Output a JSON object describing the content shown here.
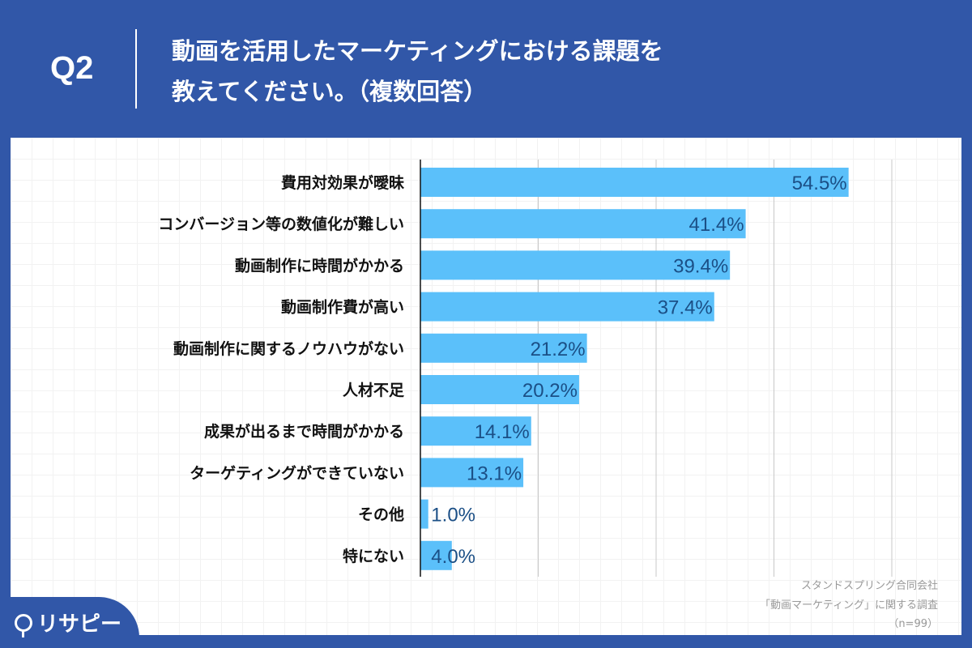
{
  "header": {
    "question_no": "Q2",
    "title_line1": "動画を活用したマーケティングにおける課題を",
    "title_line2": "教えてください。（複数回答）"
  },
  "chart_data": {
    "type": "bar",
    "orientation": "horizontal",
    "categories": [
      "費用対効果が曖昧",
      "コンバージョン等の数値化が難しい",
      "動画制作に時間がかかる",
      "動画制作費が高い",
      "動画制作に関するノウハウがない",
      "人材不足",
      "成果が出るまで時間がかかる",
      "ターゲティングができていない",
      "その他",
      "特にない"
    ],
    "values": [
      54.5,
      41.4,
      39.4,
      37.4,
      21.2,
      20.2,
      14.1,
      13.1,
      1.0,
      4.0
    ],
    "data_labels": [
      "54.5%",
      "41.4%",
      "39.4%",
      "37.4%",
      "21.2%",
      "20.2%",
      "14.1%",
      "13.1%",
      "1.0%",
      "4.0%"
    ],
    "xlim": [
      0,
      60
    ],
    "grid_step": 15,
    "grid": true,
    "bar_color": "#5bc0fa",
    "label_color": "#1b4f86"
  },
  "footnote": {
    "line1": "スタンドスプリング合同会社",
    "line2": "「動画マーケティング」に関する調査",
    "line3": "（n=99）"
  },
  "brand": {
    "logo_text": "リサピー"
  },
  "colors": {
    "header_bg": "#3157a8"
  }
}
